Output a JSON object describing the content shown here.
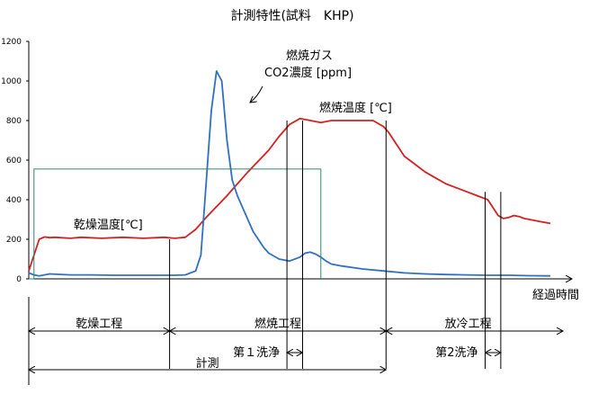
{
  "chart_data": {
    "type": "line",
    "title": "計測特性(試料　KHP)",
    "xlabel": "経過時間",
    "ylabel": "",
    "xlim": [
      0,
      100
    ],
    "ylim": [
      0,
      1200
    ],
    "y_ticks": [
      0,
      200,
      400,
      600,
      800,
      1000,
      1200
    ],
    "y_tick_labels": [
      "0",
      "200",
      "400",
      "600",
      "800",
      "1000",
      "1200"
    ],
    "grid": false,
    "series": [
      {
        "name": "乾燥温度[℃]",
        "color": "#d42020",
        "x": [
          0,
          1,
          2,
          3,
          4,
          5,
          8,
          10,
          14,
          18,
          22,
          26,
          28,
          30,
          32,
          34,
          38,
          42,
          46,
          48,
          50,
          52,
          54,
          56,
          58,
          60,
          62,
          64,
          66,
          68,
          69,
          70,
          71,
          72,
          74,
          76,
          78,
          80,
          82,
          84,
          86,
          88,
          89,
          90,
          91,
          92,
          93,
          94,
          95,
          96,
          97,
          98,
          100
        ],
        "y": [
          40,
          120,
          200,
          212,
          208,
          210,
          205,
          210,
          205,
          210,
          205,
          210,
          205,
          210,
          250,
          310,
          420,
          540,
          650,
          720,
          780,
          810,
          800,
          790,
          800,
          800,
          800,
          800,
          800,
          770,
          740,
          700,
          660,
          620,
          580,
          540,
          510,
          480,
          460,
          440,
          420,
          400,
          360,
          320,
          305,
          310,
          320,
          315,
          305,
          300,
          295,
          290,
          280
        ]
      },
      {
        "name": "燃焼ガス CO2濃度 [ppm]",
        "color": "#3070c0",
        "x": [
          0,
          1,
          2,
          4,
          8,
          12,
          16,
          20,
          24,
          28,
          30,
          32,
          33,
          34,
          35,
          36,
          37,
          38,
          39,
          40,
          41,
          42,
          43,
          44,
          45,
          46,
          48,
          50,
          52,
          53,
          54,
          55,
          56,
          57,
          58,
          60,
          64,
          68,
          72,
          76,
          80,
          84,
          88,
          92,
          96,
          100
        ],
        "y": [
          30,
          20,
          15,
          25,
          20,
          20,
          18,
          18,
          18,
          18,
          20,
          40,
          120,
          480,
          850,
          1050,
          1000,
          700,
          500,
          420,
          360,
          300,
          240,
          200,
          160,
          130,
          100,
          90,
          110,
          130,
          135,
          125,
          110,
          90,
          75,
          65,
          50,
          40,
          30,
          25,
          22,
          20,
          18,
          18,
          16,
          15
        ]
      },
      {
        "name": "",
        "color": "#2a8a6a",
        "x": [
          0,
          1,
          1,
          56,
          56
        ],
        "y": [
          0,
          0,
          555,
          555,
          0
        ]
      }
    ],
    "annotations": [
      {
        "text": "燃焼ガス",
        "target": "peak"
      },
      {
        "text": "CO2濃度 [ppm]",
        "target": "peak"
      },
      {
        "text": "燃焼温度 [℃]",
        "target": "plateau"
      },
      {
        "text": "乾燥温度[℃]",
        "target": "drying"
      }
    ],
    "phases": [
      {
        "label": "乾燥工程",
        "start": 0,
        "end": 27
      },
      {
        "label": "燃焼工程",
        "start": 27,
        "end": 68.5
      },
      {
        "label": "放冷工程",
        "start": 68.5,
        "end": 100
      }
    ],
    "washes": [
      {
        "label": "第１洗浄",
        "start": 49.5,
        "end": 52.5
      },
      {
        "label": "第2洗浄",
        "start": 87.5,
        "end": 90.5
      }
    ],
    "measurement": {
      "label": "計測",
      "start": 0,
      "end": 68.5
    }
  }
}
